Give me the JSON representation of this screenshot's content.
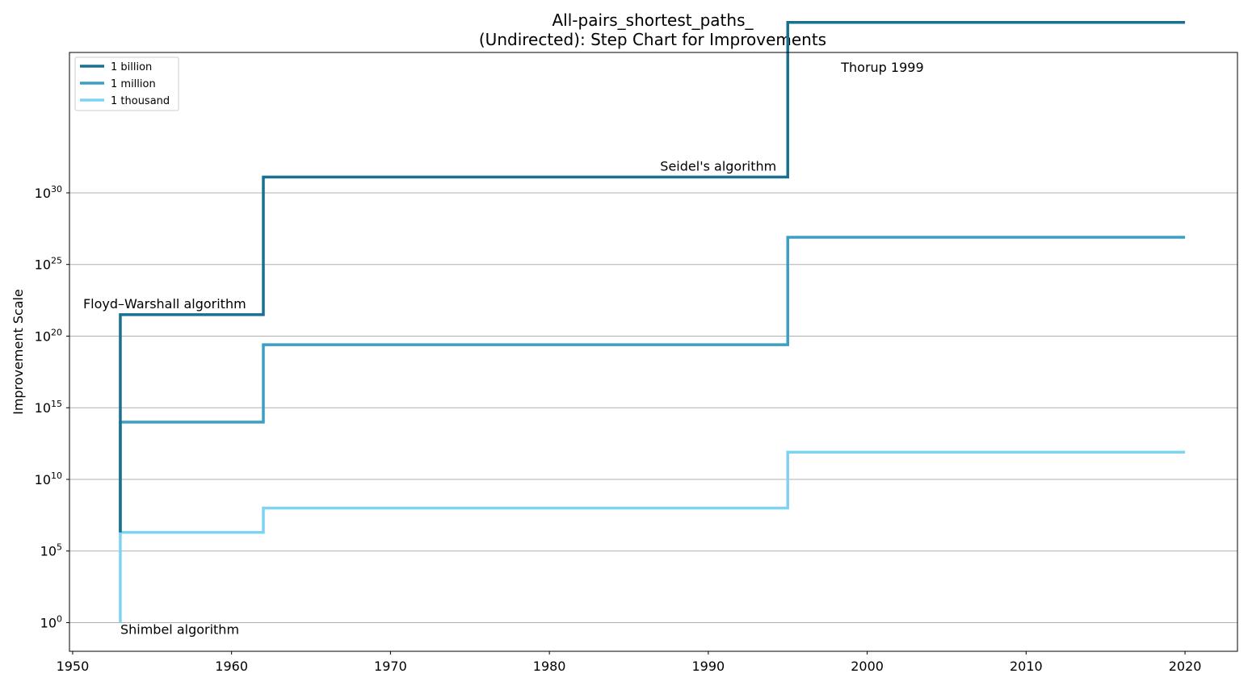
{
  "chart_data": {
    "type": "line",
    "step": true,
    "title": "All-pairs_shortest_paths_\n(Undirected): Step Chart for Improvements",
    "xlabel": "",
    "ylabel": "Improvement Scale",
    "xlim": [
      1949.8,
      2023.3
    ],
    "ylim_log10": [
      -2,
      39.8
    ],
    "x_ticks": [
      1950,
      1960,
      1970,
      1980,
      1990,
      2000,
      2010,
      2020
    ],
    "y_ticks": [
      {
        "base": "10",
        "exp": "0",
        "log10": 0
      },
      {
        "base": "10",
        "exp": "5",
        "log10": 5
      },
      {
        "base": "10",
        "exp": "10",
        "log10": 10
      },
      {
        "base": "10",
        "exp": "15",
        "log10": 15
      },
      {
        "base": "10",
        "exp": "20",
        "log10": 20
      },
      {
        "base": "10",
        "exp": "25",
        "log10": 25
      },
      {
        "base": "10",
        "exp": "30",
        "log10": 30
      }
    ],
    "y_scale": "log",
    "grid": "y",
    "legend_position": "top-left",
    "series": [
      {
        "name": "1 billion",
        "color": "#1a7090",
        "x": [
          1953,
          1962,
          1995,
          2020
        ],
        "log10_y": [
          21.5,
          31.1,
          41.9,
          41.9
        ]
      },
      {
        "name": "1 million",
        "color": "#3a9fc2",
        "x": [
          1953,
          1962,
          1995,
          2020
        ],
        "log10_y": [
          14.0,
          19.4,
          26.9,
          26.9
        ]
      },
      {
        "name": "1 thousand",
        "color": "#7fd3f2",
        "x": [
          1953,
          1962,
          1995,
          2020
        ],
        "log10_y": [
          6.3,
          8.0,
          11.9,
          11.9
        ]
      }
    ],
    "start_point": {
      "x": 1953,
      "log10_y": 0
    },
    "annotations": [
      {
        "text": "Shimbel algorithm",
        "x": 1953,
        "log10_y": 0
      },
      {
        "text": "Floyd–Warshall algorithm",
        "x": 1953,
        "log10_y": 21.5
      },
      {
        "text": "Seidel's algorithm",
        "x": 1995,
        "log10_y": 31.1
      },
      {
        "text": "Thorup 1999",
        "x": 1995,
        "log10_y": 41.9
      }
    ]
  }
}
